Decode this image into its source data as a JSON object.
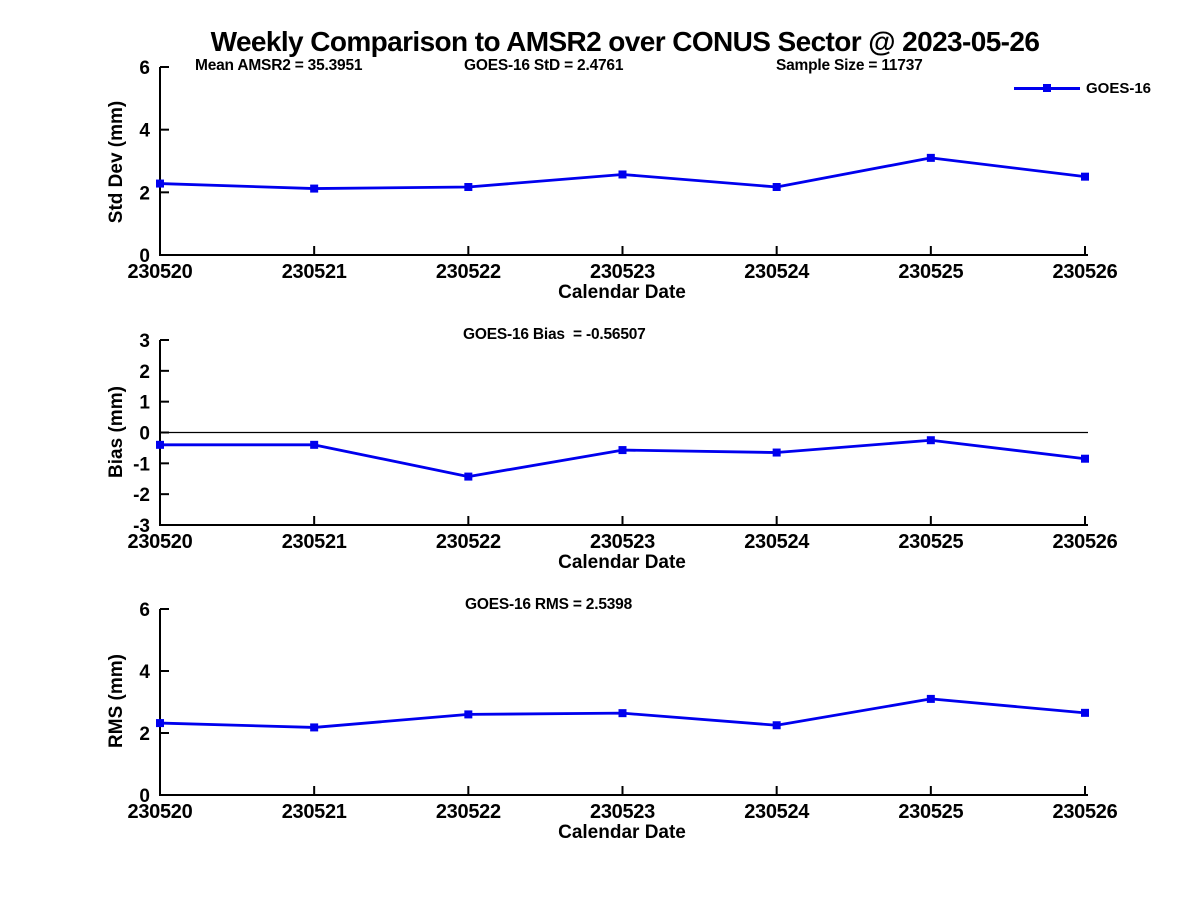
{
  "figure": {
    "title": "Weekly Comparison to AMSR2 over CONUS Sector @ 2023-05-26",
    "background": "#FFFFFF",
    "line_color": "#0000EE",
    "axis_color": "#000000"
  },
  "legend": {
    "label": "GOES-16",
    "marker": "filled-square",
    "position": "top-right-of-first-subplot"
  },
  "chart_data": [
    {
      "name": "std-dev",
      "type": "line",
      "annotations": [
        "Mean AMSR2 = 35.3951",
        "GOES-16 StD = 2.4761",
        "Sample Size = 11737"
      ],
      "categories": [
        "230520",
        "230521",
        "230522",
        "230523",
        "230524",
        "230525",
        "230526"
      ],
      "series": [
        {
          "name": "GOES-16",
          "values": [
            2.28,
            2.12,
            2.17,
            2.57,
            2.17,
            3.1,
            2.5
          ]
        }
      ],
      "xlabel": "Calendar Date",
      "ylabel": "Std Dev (mm)",
      "ylim": [
        0,
        6
      ],
      "yticks": [
        0,
        2,
        4,
        6
      ],
      "zero_line": false,
      "grid": "off",
      "marker": "square"
    },
    {
      "name": "bias",
      "type": "line",
      "annotations": [
        "GOES-16 Bias  = -0.56507"
      ],
      "categories": [
        "230520",
        "230521",
        "230522",
        "230523",
        "230524",
        "230525",
        "230526"
      ],
      "series": [
        {
          "name": "GOES-16",
          "values": [
            -0.4,
            -0.4,
            -1.43,
            -0.57,
            -0.65,
            -0.25,
            -0.85
          ]
        }
      ],
      "xlabel": "Calendar Date",
      "ylabel": "Bias (mm)",
      "ylim": [
        -3,
        3
      ],
      "yticks": [
        -3,
        -2,
        -1,
        0,
        1,
        2,
        3
      ],
      "zero_line": true,
      "grid": "off",
      "marker": "square"
    },
    {
      "name": "rms",
      "type": "line",
      "annotations": [
        "GOES-16 RMS = 2.5398"
      ],
      "categories": [
        "230520",
        "230521",
        "230522",
        "230523",
        "230524",
        "230525",
        "230526"
      ],
      "series": [
        {
          "name": "GOES-16",
          "values": [
            2.32,
            2.18,
            2.6,
            2.64,
            2.25,
            3.1,
            2.65
          ]
        }
      ],
      "xlabel": "Calendar Date",
      "ylabel": "RMS (mm)",
      "ylim": [
        0,
        6
      ],
      "yticks": [
        0,
        2,
        4,
        6
      ],
      "zero_line": false,
      "grid": "off",
      "marker": "square"
    }
  ]
}
